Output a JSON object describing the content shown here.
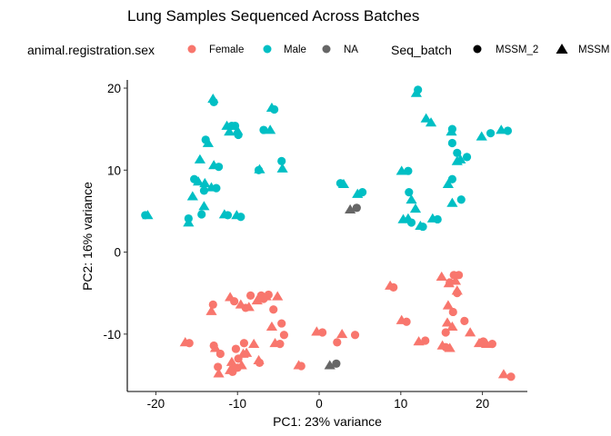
{
  "chart_data": {
    "type": "scatter",
    "title": "Lung Samples Sequenced Across Batches",
    "xlabel": "PC1: 23% variance",
    "ylabel": "PC2: 16% variance",
    "xlim": [
      -23.5,
      25.5
    ],
    "ylim": [
      -17,
      21
    ],
    "xticks": [
      -20,
      -10,
      0,
      10,
      20
    ],
    "yticks": [
      -10,
      0,
      10,
      20
    ],
    "grid": false,
    "legend_position": "top",
    "legend": {
      "color": {
        "title": "animal.registration.sex",
        "entries": [
          {
            "label": "Female",
            "color": "#F8766D"
          },
          {
            "label": "Male",
            "color": "#00BFC4"
          },
          {
            "label": "NA",
            "color": "#666666"
          }
        ]
      },
      "shape": {
        "title": "Seq_batch",
        "entries": [
          {
            "label": "MSSM_2",
            "shape": "circle"
          },
          {
            "label": "MSSM",
            "shape": "triangle"
          }
        ]
      }
    },
    "series": [
      {
        "name": "Male",
        "color": "#00BFC4",
        "points": [
          [
            -21.3,
            4.5,
            "c"
          ],
          [
            -21.0,
            4.5,
            "t"
          ],
          [
            -16.0,
            4.1,
            "c"
          ],
          [
            -16.0,
            3.6,
            "t"
          ],
          [
            -15.5,
            6.8,
            "t"
          ],
          [
            -15.3,
            8.9,
            "c"
          ],
          [
            -14.8,
            8.6,
            "t"
          ],
          [
            -14.6,
            11.3,
            "t"
          ],
          [
            -14.4,
            4.6,
            "c"
          ],
          [
            -14.1,
            5.6,
            "t"
          ],
          [
            -14.1,
            7.5,
            "c"
          ],
          [
            -14.0,
            8.4,
            "t"
          ],
          [
            -13.9,
            13.7,
            "c"
          ],
          [
            -13.6,
            13.3,
            "t"
          ],
          [
            -13.2,
            7.9,
            "t"
          ],
          [
            -13.0,
            18.7,
            "t"
          ],
          [
            -12.9,
            18.3,
            "c"
          ],
          [
            -12.9,
            10.6,
            "t"
          ],
          [
            -12.6,
            7.8,
            "c"
          ],
          [
            -12.3,
            10.4,
            "c"
          ],
          [
            -11.6,
            4.6,
            "t"
          ],
          [
            -11.2,
            4.5,
            "c"
          ],
          [
            -11.3,
            15.4,
            "t"
          ],
          [
            -11.0,
            14.7,
            "t"
          ],
          [
            -10.7,
            15.4,
            "c"
          ],
          [
            -10.3,
            15.4,
            "c"
          ],
          [
            -10.1,
            4.5,
            "t"
          ],
          [
            -10.0,
            14.8,
            "t"
          ],
          [
            -9.9,
            14.3,
            "c"
          ],
          [
            -9.6,
            4.3,
            "c"
          ],
          [
            -7.4,
            10.0,
            "c"
          ],
          [
            -7.3,
            10.1,
            "t"
          ],
          [
            -6.8,
            14.9,
            "c"
          ],
          [
            -6.0,
            14.9,
            "t"
          ],
          [
            -5.8,
            17.6,
            "t"
          ],
          [
            -5.5,
            17.4,
            "c"
          ],
          [
            -4.6,
            11.1,
            "c"
          ],
          [
            -4.5,
            10.2,
            "t"
          ],
          [
            2.6,
            8.4,
            "c"
          ],
          [
            3.0,
            8.3,
            "t"
          ],
          [
            4.7,
            7.1,
            "t"
          ],
          [
            5.3,
            7.3,
            "c"
          ],
          [
            10.1,
            9.9,
            "t"
          ],
          [
            10.9,
            9.9,
            "c"
          ],
          [
            10.3,
            4.0,
            "t"
          ],
          [
            10.9,
            4.1,
            "t"
          ],
          [
            11.0,
            7.3,
            "c"
          ],
          [
            11.3,
            6.4,
            "t"
          ],
          [
            11.3,
            3.6,
            "c"
          ],
          [
            11.8,
            5.3,
            "t"
          ],
          [
            11.9,
            19.4,
            "t"
          ],
          [
            12.1,
            19.8,
            "c"
          ],
          [
            12.4,
            3.2,
            "t"
          ],
          [
            12.7,
            3.1,
            "c"
          ],
          [
            13.1,
            16.3,
            "t"
          ],
          [
            13.7,
            15.8,
            "t"
          ],
          [
            13.9,
            4.1,
            "t"
          ],
          [
            14.5,
            4.0,
            "c"
          ],
          [
            15.8,
            8.3,
            "t"
          ],
          [
            16.2,
            14.7,
            "t"
          ],
          [
            16.3,
            15.0,
            "c"
          ],
          [
            16.3,
            13.3,
            "c"
          ],
          [
            16.3,
            8.9,
            "c"
          ],
          [
            16.3,
            6.0,
            "t"
          ],
          [
            16.9,
            12.1,
            "c"
          ],
          [
            16.9,
            11.1,
            "t"
          ],
          [
            17.3,
            11.3,
            "t"
          ],
          [
            17.4,
            6.4,
            "c"
          ],
          [
            18.1,
            11.6,
            "c"
          ],
          [
            19.9,
            14.1,
            "t"
          ],
          [
            21.0,
            14.5,
            "c"
          ],
          [
            22.3,
            14.9,
            "t"
          ],
          [
            23.1,
            14.8,
            "c"
          ]
        ]
      },
      {
        "name": "Female",
        "color": "#F8766D",
        "points": [
          [
            -16.4,
            -11.0,
            "t"
          ],
          [
            -15.9,
            -11.1,
            "c"
          ],
          [
            -13.2,
            -7.2,
            "t"
          ],
          [
            -13.0,
            -6.4,
            "c"
          ],
          [
            -12.9,
            -11.4,
            "c"
          ],
          [
            -12.7,
            -11.7,
            "t"
          ],
          [
            -12.4,
            -14.0,
            "c"
          ],
          [
            -12.3,
            -14.8,
            "t"
          ],
          [
            -12.1,
            -12.4,
            "c"
          ],
          [
            -10.9,
            -5.5,
            "t"
          ],
          [
            -10.9,
            -14.4,
            "t"
          ],
          [
            -10.7,
            -13.4,
            "t"
          ],
          [
            -10.6,
            -14.6,
            "c"
          ],
          [
            -10.5,
            -14.0,
            "t"
          ],
          [
            -10.4,
            -6.0,
            "c"
          ],
          [
            -10.2,
            -11.8,
            "c"
          ],
          [
            -10.0,
            -14.1,
            "c"
          ],
          [
            -9.9,
            -13.0,
            "c"
          ],
          [
            -9.6,
            -6.4,
            "t"
          ],
          [
            -9.5,
            -13.8,
            "t"
          ],
          [
            -9.3,
            -12.4,
            "t"
          ],
          [
            -9.2,
            -11.1,
            "c"
          ],
          [
            -9.0,
            -6.8,
            "c"
          ],
          [
            -8.9,
            -12.3,
            "t"
          ],
          [
            -8.6,
            -6.7,
            "t"
          ],
          [
            -8.4,
            -5.3,
            "c"
          ],
          [
            -8.0,
            -11.2,
            "t"
          ],
          [
            -7.6,
            -5.9,
            "t"
          ],
          [
            -7.4,
            -13.2,
            "t"
          ],
          [
            -7.3,
            -13.5,
            "c"
          ],
          [
            -7.1,
            -5.3,
            "c"
          ],
          [
            -6.8,
            -5.7,
            "c"
          ],
          [
            -6.5,
            -5.4,
            "t"
          ],
          [
            -6.2,
            -5.2,
            "c"
          ],
          [
            -5.8,
            -9.1,
            "t"
          ],
          [
            -5.6,
            -7.0,
            "c"
          ],
          [
            -5.4,
            -11.1,
            "t"
          ],
          [
            -5.1,
            -5.4,
            "t"
          ],
          [
            -4.8,
            -11.2,
            "c"
          ],
          [
            -4.6,
            -8.7,
            "c"
          ],
          [
            -4.3,
            -10.1,
            "c"
          ],
          [
            -2.5,
            -13.8,
            "t"
          ],
          [
            -2.2,
            -13.9,
            "c"
          ],
          [
            -0.3,
            -9.7,
            "t"
          ],
          [
            0.4,
            -9.8,
            "c"
          ],
          [
            2.2,
            -11.0,
            "c"
          ],
          [
            2.8,
            -10.0,
            "t"
          ],
          [
            4.4,
            -10.1,
            "c"
          ],
          [
            8.7,
            -4.1,
            "t"
          ],
          [
            9.1,
            -4.3,
            "c"
          ],
          [
            10.1,
            -8.3,
            "t"
          ],
          [
            10.7,
            -8.5,
            "c"
          ],
          [
            12.2,
            -10.9,
            "t"
          ],
          [
            13.0,
            -10.8,
            "c"
          ],
          [
            15.0,
            -3.0,
            "t"
          ],
          [
            15.1,
            -11.4,
            "t"
          ],
          [
            15.5,
            -11.6,
            "c"
          ],
          [
            15.5,
            -9.8,
            "c"
          ],
          [
            15.7,
            -8.6,
            "t"
          ],
          [
            15.8,
            -6.5,
            "t"
          ],
          [
            15.9,
            -3.8,
            "t"
          ],
          [
            16.0,
            -3.7,
            "c"
          ],
          [
            16.0,
            -11.7,
            "t"
          ],
          [
            16.3,
            -9.1,
            "t"
          ],
          [
            16.4,
            -7.3,
            "c"
          ],
          [
            16.5,
            -2.8,
            "c"
          ],
          [
            16.7,
            -3.5,
            "t"
          ],
          [
            16.9,
            -4.7,
            "t"
          ],
          [
            16.9,
            -5.0,
            "c"
          ],
          [
            17.1,
            -2.8,
            "c"
          ],
          [
            17.8,
            -8.4,
            "c"
          ],
          [
            18.5,
            -9.8,
            "t"
          ],
          [
            19.6,
            -11.1,
            "t"
          ],
          [
            20.1,
            -10.9,
            "c"
          ],
          [
            20.5,
            -11.2,
            "t"
          ],
          [
            21.2,
            -11.2,
            "c"
          ],
          [
            22.6,
            -14.9,
            "t"
          ],
          [
            23.5,
            -15.2,
            "c"
          ]
        ]
      },
      {
        "name": "NA",
        "color": "#666666",
        "points": [
          [
            3.8,
            5.2,
            "t"
          ],
          [
            4.6,
            5.4,
            "c"
          ],
          [
            1.3,
            -13.8,
            "t"
          ],
          [
            2.1,
            -13.6,
            "c"
          ]
        ]
      }
    ]
  }
}
